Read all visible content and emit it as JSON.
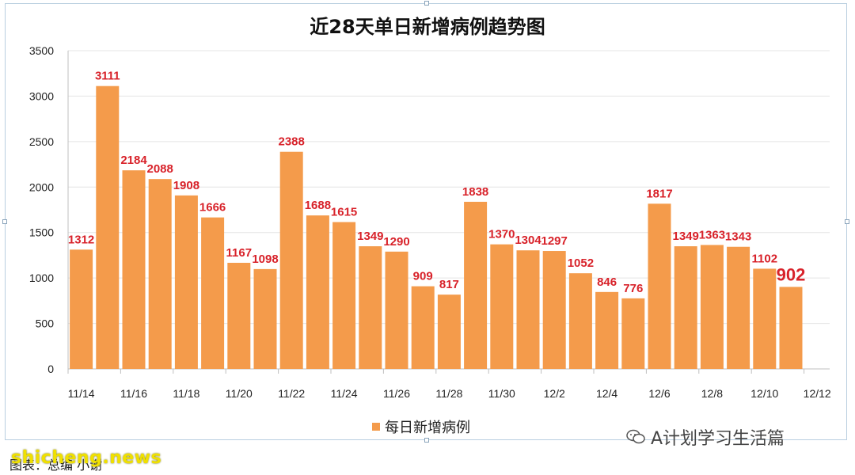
{
  "chart_data": {
    "type": "bar",
    "title": "近28天单日新增病例趋势图",
    "categories": [
      "11/14",
      "11/15",
      "11/16",
      "11/17",
      "11/18",
      "11/19",
      "11/20",
      "11/21",
      "11/22",
      "11/23",
      "11/24",
      "11/25",
      "11/26",
      "11/27",
      "11/28",
      "11/29",
      "11/30",
      "12/1",
      "12/2",
      "12/3",
      "12/4",
      "12/5",
      "12/6",
      "12/7",
      "12/8",
      "12/9",
      "12/10",
      "12/11"
    ],
    "x_tick_labels": [
      "11/14",
      "11/16",
      "11/18",
      "11/20",
      "11/22",
      "11/24",
      "11/26",
      "11/28",
      "11/30",
      "12/2",
      "12/4",
      "12/6",
      "12/8",
      "12/10",
      "12/12"
    ],
    "series": [
      {
        "name": "每日新增病例",
        "values": [
          1312,
          3111,
          2184,
          2088,
          1908,
          1666,
          1167,
          1098,
          2388,
          1688,
          1615,
          1349,
          1290,
          909,
          817,
          1838,
          1370,
          1304,
          1297,
          1052,
          846,
          776,
          1817,
          1349,
          1363,
          1343,
          1102,
          902
        ]
      }
    ],
    "y_ticks": [
      0,
      500,
      1000,
      1500,
      2000,
      2500,
      3000,
      3500
    ],
    "ylim": [
      0,
      3500
    ],
    "grid": true,
    "legend_position": "bottom",
    "bar_color": "#f49b4b",
    "label_color": "#d8222a",
    "highlighted_last_label": true
  },
  "footer": {
    "source_text": "图表：总编 小谢",
    "site_watermark": "shicheng.news",
    "wechat_account": "A计划学习生活篇"
  }
}
